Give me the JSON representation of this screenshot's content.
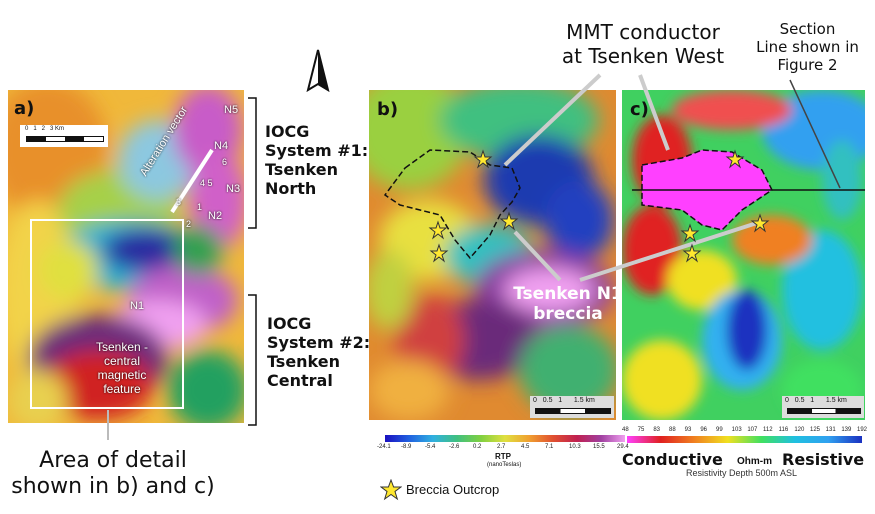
{
  "panel_labels": {
    "a": "a)",
    "b": "b)",
    "c": "c)"
  },
  "colors": {
    "conductive": "#ff40ff",
    "resistive": "#1a2bd6",
    "star": "#ffe830"
  },
  "panel_a": {
    "scale_label": "0   1   2   3 Km",
    "alteration_vector": "Alteration vector",
    "targets": [
      "N5",
      "N4",
      "N3",
      "N2",
      "N1"
    ],
    "points": [
      "6",
      "4 5",
      "1",
      "2",
      "3"
    ],
    "feature_label": "Tsenken - central magnetic feature"
  },
  "system1": {
    "line1": "IOCG",
    "line2": "System #1:",
    "line3": "Tsenken",
    "line4": "North"
  },
  "system2": {
    "line1": "IOCG",
    "line2": "System #2:",
    "line3": "Tsenken",
    "line4": "Central"
  },
  "area_detail": {
    "line1": "Area of detail",
    "line2": "shown in b) and c)"
  },
  "mmt_callout": {
    "line1": "MMT conductor",
    "line2": "at Tsenken West"
  },
  "section_callout": {
    "line1": "Section",
    "line2": "Line shown in",
    "line3": "Figure 2"
  },
  "breccia_callout": {
    "line1": "Tsenken N1",
    "line2": "breccia"
  },
  "scale_b": "0   0.5   1      1.5 km",
  "scale_c": "0   0.5   1      1.5 km",
  "rtp_legend": {
    "ticks": [
      "-24.1",
      "-8.9",
      "-5.4",
      "-2.6",
      "0.2",
      "2.7",
      "4.5",
      "7.1",
      "10.3",
      "15.5",
      "29.4"
    ],
    "title": "RTP",
    "unit": "(nanoTeslas)"
  },
  "resistivity_legend": {
    "ticks": [
      "48",
      "75",
      "83",
      "88",
      "93",
      "96",
      "99",
      "103",
      "107",
      "112",
      "116",
      "120",
      "125",
      "131",
      "139",
      "192"
    ],
    "conductive": "Conductive",
    "unit": "Ohm-m",
    "resistive": "Resistive",
    "caption": "Resistivity Depth 500m ASL"
  },
  "breccia_legend": "Breccia Outcrop"
}
